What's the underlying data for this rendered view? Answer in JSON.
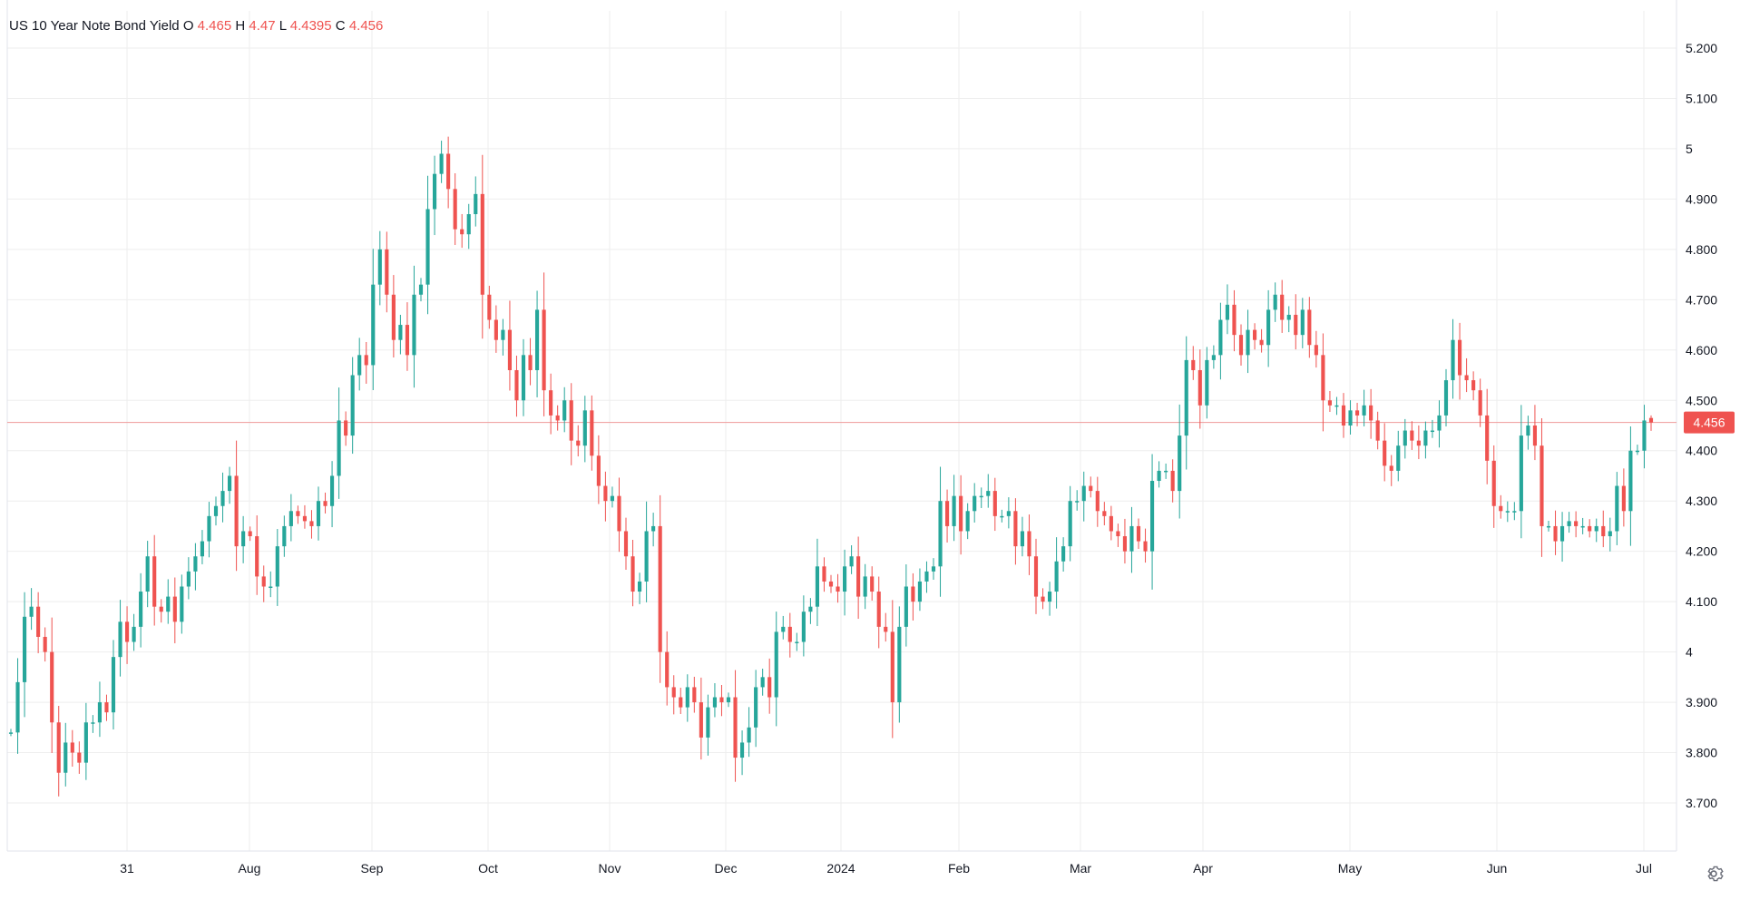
{
  "legend": {
    "symbol": "US 10 Year Note Bond Yield",
    "open_label": "O",
    "open": "4.465",
    "high_label": "H",
    "high": "4.47",
    "low_label": "L",
    "low": "4.4395",
    "close_label": "C",
    "close": "4.456"
  },
  "price_badge": "4.456",
  "colors": {
    "up": "#26a69a",
    "down": "#ef5350",
    "grid": "#eeeeee",
    "axis_text": "#131722"
  },
  "icons": {
    "settings": "gear-icon"
  },
  "chart_data": {
    "type": "candlestick",
    "title": "US 10 Year Note Bond Yield",
    "ylim": [
      3.62,
      5.28
    ],
    "y_ticks": [
      {
        "value": 5.2,
        "label": "5.200"
      },
      {
        "value": 5.1,
        "label": "5.100"
      },
      {
        "value": 5.0,
        "label": "5"
      },
      {
        "value": 4.9,
        "label": "4.900"
      },
      {
        "value": 4.8,
        "label": "4.800"
      },
      {
        "value": 4.7,
        "label": "4.700"
      },
      {
        "value": 4.6,
        "label": "4.600"
      },
      {
        "value": 4.5,
        "label": "4.500"
      },
      {
        "value": 4.4,
        "label": "4.400"
      },
      {
        "value": 4.3,
        "label": "4.300"
      },
      {
        "value": 4.2,
        "label": "4.200"
      },
      {
        "value": 4.1,
        "label": "4.100"
      },
      {
        "value": 4.0,
        "label": "4"
      },
      {
        "value": 3.9,
        "label": "3.900"
      },
      {
        "value": 3.8,
        "label": "3.800"
      },
      {
        "value": 3.7,
        "label": "3.700"
      }
    ],
    "x_ticks": [
      {
        "date": "2023-07-31",
        "label": "31"
      },
      {
        "date": "2023-08-15",
        "label": "Aug"
      },
      {
        "date": "2023-09-01",
        "label": "Sep"
      },
      {
        "date": "2023-10-02",
        "label": "Oct"
      },
      {
        "date": "2023-11-01",
        "label": "Nov"
      },
      {
        "date": "2023-12-01",
        "label": "Dec"
      },
      {
        "date": "2024-01-02",
        "label": "2024"
      },
      {
        "date": "2024-02-01",
        "label": "Feb"
      },
      {
        "date": "2024-03-01",
        "label": "Mar"
      },
      {
        "date": "2024-04-01",
        "label": "Apr"
      },
      {
        "date": "2024-05-01",
        "label": "May"
      },
      {
        "date": "2024-06-03",
        "label": "Jun"
      },
      {
        "date": "2024-07-01",
        "label": "Jul"
      }
    ],
    "last_price": 4.456,
    "closes": [
      3.84,
      3.94,
      4.07,
      4.09,
      4.03,
      4.0,
      3.86,
      3.76,
      3.82,
      3.8,
      3.78,
      3.86,
      3.86,
      3.9,
      3.88,
      3.99,
      4.06,
      4.02,
      4.05,
      4.12,
      4.19,
      4.09,
      4.08,
      4.11,
      4.06,
      4.13,
      4.16,
      4.19,
      4.22,
      4.27,
      4.29,
      4.32,
      4.35,
      4.21,
      4.24,
      4.23,
      4.15,
      4.13,
      4.13,
      4.21,
      4.25,
      4.28,
      4.27,
      4.26,
      4.25,
      4.3,
      4.29,
      4.35,
      4.46,
      4.43,
      4.55,
      4.59,
      4.57,
      4.73,
      4.8,
      4.71,
      4.62,
      4.65,
      4.59,
      4.71,
      4.73,
      4.88,
      4.95,
      4.99,
      4.92,
      4.84,
      4.83,
      4.87,
      4.91,
      4.71,
      4.66,
      4.62,
      4.64,
      4.56,
      4.5,
      4.59,
      4.56,
      4.68,
      4.52,
      4.47,
      4.46,
      4.5,
      4.42,
      4.41,
      4.48,
      4.39,
      4.33,
      4.3,
      4.31,
      4.24,
      4.19,
      4.12,
      4.14,
      4.24,
      4.25,
      4.0,
      3.93,
      3.91,
      3.89,
      3.93,
      3.9,
      3.83,
      3.89,
      3.91,
      3.9,
      3.91,
      3.79,
      3.82,
      3.85,
      3.93,
      3.95,
      3.91,
      4.04,
      4.05,
      4.02,
      4.02,
      4.08,
      4.09,
      4.17,
      4.14,
      4.13,
      4.12,
      4.17,
      4.19,
      4.11,
      4.15,
      4.12,
      4.05,
      4.04,
      3.9,
      4.05,
      4.13,
      4.1,
      4.14,
      4.16,
      4.17,
      4.3,
      4.25,
      4.31,
      4.24,
      4.28,
      4.31,
      4.31,
      4.32,
      4.27,
      4.27,
      4.28,
      4.21,
      4.24,
      4.19,
      4.11,
      4.1,
      4.12,
      4.18,
      4.21,
      4.3,
      4.3,
      4.33,
      4.32,
      4.28,
      4.27,
      4.24,
      4.23,
      4.2,
      4.25,
      4.22,
      4.2,
      4.34,
      4.36,
      4.36,
      4.32,
      4.43,
      4.58,
      4.56,
      4.49,
      4.58,
      4.59,
      4.66,
      4.69,
      4.63,
      4.59,
      4.64,
      4.62,
      4.61,
      4.68,
      4.71,
      4.66,
      4.67,
      4.63,
      4.68,
      4.61,
      4.59,
      4.5,
      4.49,
      4.49,
      4.45,
      4.48,
      4.47,
      4.49,
      4.46,
      4.42,
      4.37,
      4.36,
      4.41,
      4.44,
      4.42,
      4.41,
      4.44,
      4.44,
      4.47,
      4.54,
      4.62,
      4.55,
      4.54,
      4.52,
      4.47,
      4.38,
      4.29,
      4.28,
      4.28,
      4.28,
      4.43,
      4.45,
      4.41,
      4.25,
      4.25,
      4.22,
      4.25,
      4.26,
      4.25,
      4.25,
      4.24,
      4.25,
      4.23,
      4.24,
      4.33,
      4.28,
      4.4,
      4.4,
      4.46,
      4.456
    ],
    "range_start_value": 3.84
  }
}
